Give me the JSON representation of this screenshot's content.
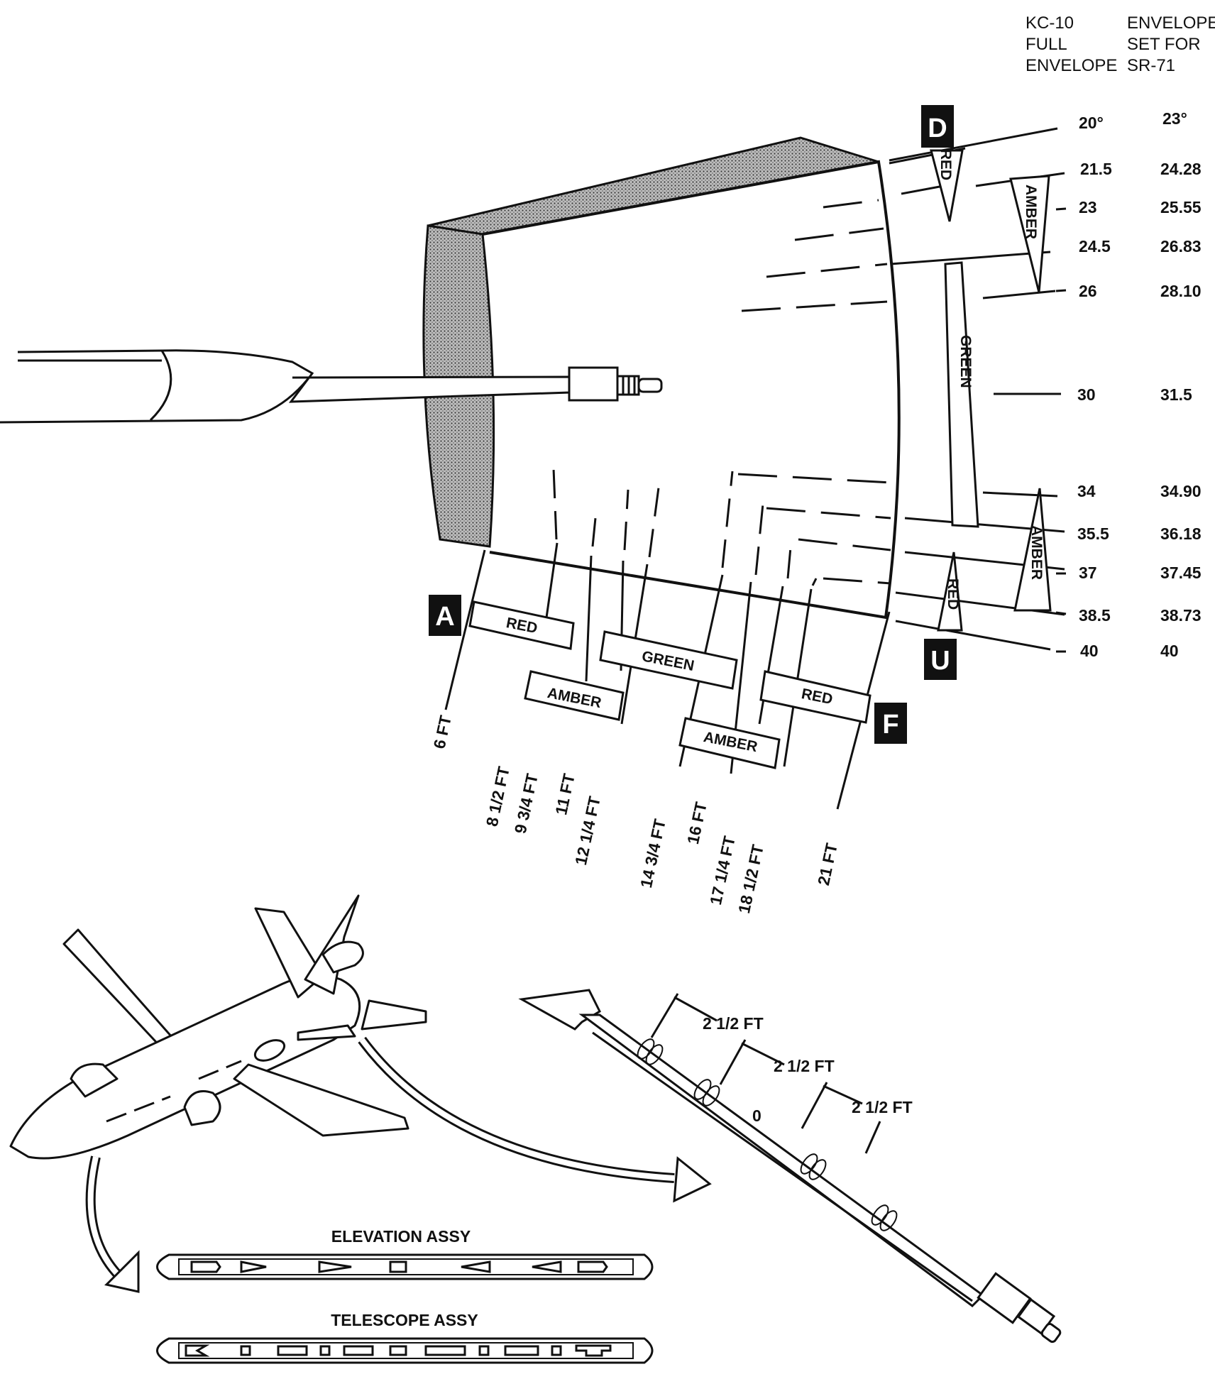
{
  "headers": {
    "kc10": [
      "KC-10",
      "FULL",
      "ENVELOPE"
    ],
    "sr71": [
      "ENVELOPE",
      "SET FOR",
      "SR-71"
    ]
  },
  "elevation_ticks": [
    {
      "kc10": "20°",
      "sr71": "23°"
    },
    {
      "kc10": "21.5",
      "sr71": "24.28"
    },
    {
      "kc10": "23",
      "sr71": "25.55"
    },
    {
      "kc10": "24.5",
      "sr71": "26.83"
    },
    {
      "kc10": "26",
      "sr71": "28.10"
    },
    {
      "kc10": "30",
      "sr71": "31.5"
    },
    {
      "kc10": "34",
      "sr71": "34.90"
    },
    {
      "kc10": "35.5",
      "sr71": "36.18"
    },
    {
      "kc10": "37",
      "sr71": "37.45"
    },
    {
      "kc10": "38.5",
      "sr71": "38.73"
    },
    {
      "kc10": "40",
      "sr71": "40"
    }
  ],
  "limits": {
    "down": "D",
    "up": "U",
    "aft": "A",
    "forward": "F"
  },
  "vertical_zones": {
    "red_top": "RED",
    "amber_top": "AMBER",
    "green": "GREEN",
    "amber_bottom": "AMBER",
    "red_bottom": "RED"
  },
  "extension_zones": {
    "red_aft": "RED",
    "amber_aft": "AMBER",
    "green": "GREEN",
    "amber_fwd": "AMBER",
    "red_fwd": "RED"
  },
  "extension_ticks": [
    "6 FT",
    "8 1/2 FT",
    "9 3/4 FT",
    "11 FT",
    "12 1/4 FT",
    "14 3/4 FT",
    "16 FT",
    "17 1/4 FT",
    "18 1/2 FT",
    "21 FT"
  ],
  "boom_spacing": [
    "2 1/2 FT",
    "2 1/2 FT",
    "2 1/2 FT"
  ],
  "boom_mark": "0",
  "assemblies": {
    "elevation": "ELEVATION ASSY",
    "telescope": "TELESCOPE ASSY"
  }
}
